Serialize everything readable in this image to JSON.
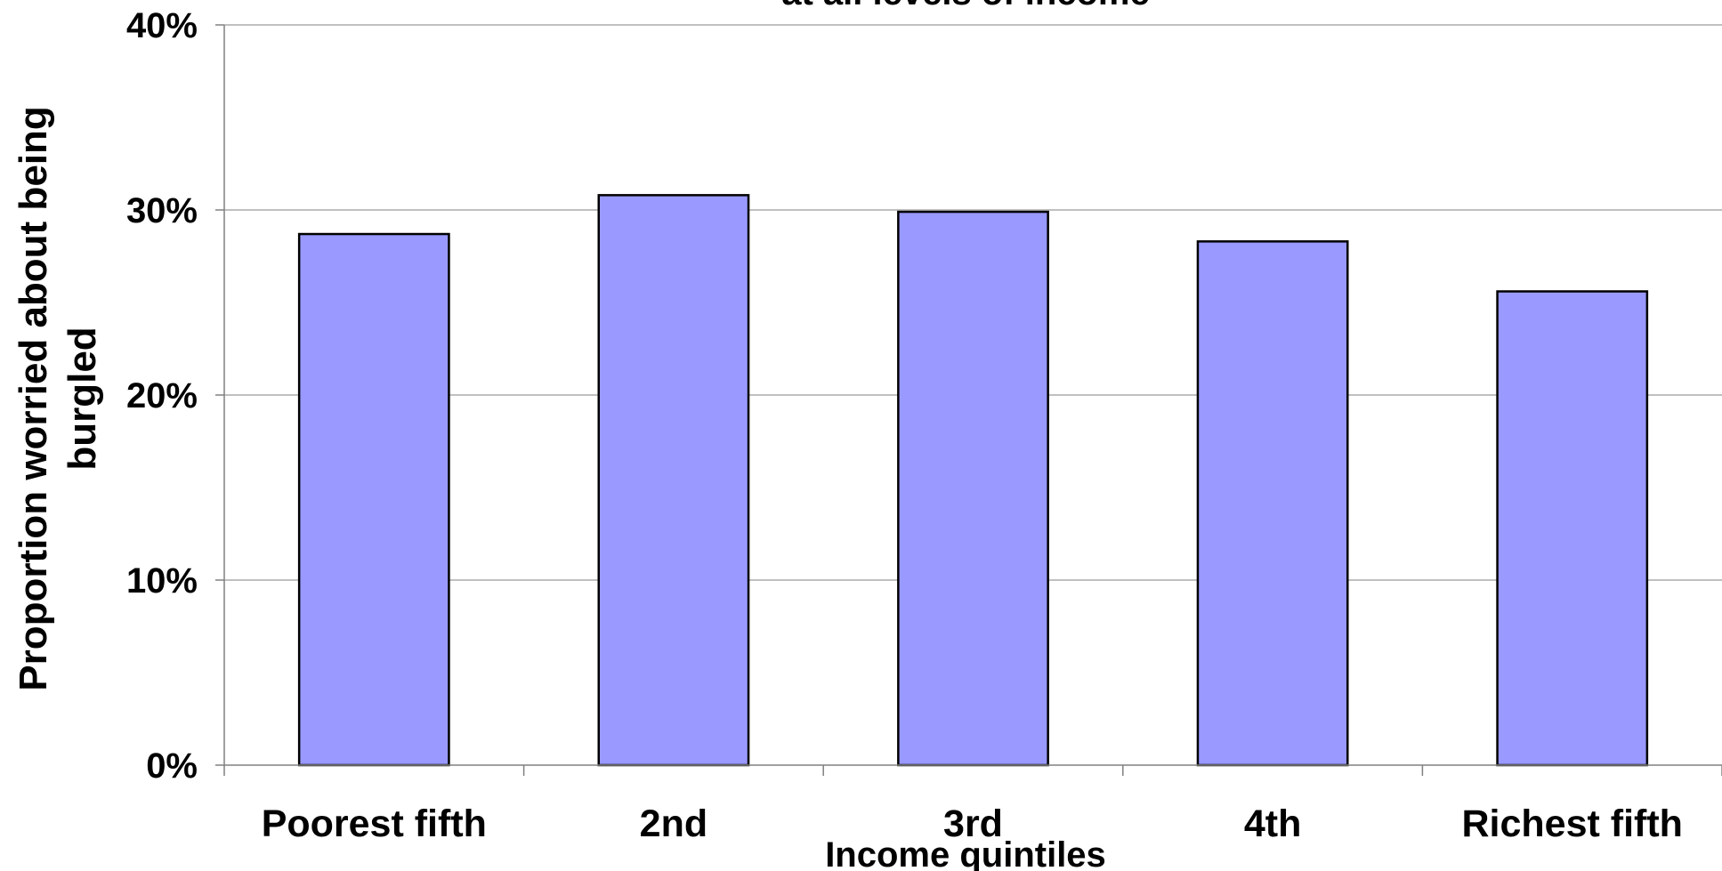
{
  "chart_data": {
    "type": "bar",
    "title": "at all levels of income",
    "xlabel": "Income quintiles",
    "ylabel": [
      "Proportion worried about being",
      "burgled"
    ],
    "categories": [
      "Poorest fifth",
      "2nd",
      "3rd",
      "4th",
      "Richest fifth"
    ],
    "values": [
      0.287,
      0.308,
      0.299,
      0.283,
      0.256
    ],
    "ylim": [
      0,
      0.4
    ],
    "yticks": [
      {
        "value": 0,
        "label": "0%"
      },
      {
        "value": 0.1,
        "label": "10%"
      },
      {
        "value": 0.2,
        "label": "20%"
      },
      {
        "value": 0.3,
        "label": "30%"
      },
      {
        "value": 0.4,
        "label": "40%"
      }
    ],
    "grid": true,
    "bar_color": "#9999ff",
    "bar_edge_color": "#000000",
    "legend": "none"
  }
}
